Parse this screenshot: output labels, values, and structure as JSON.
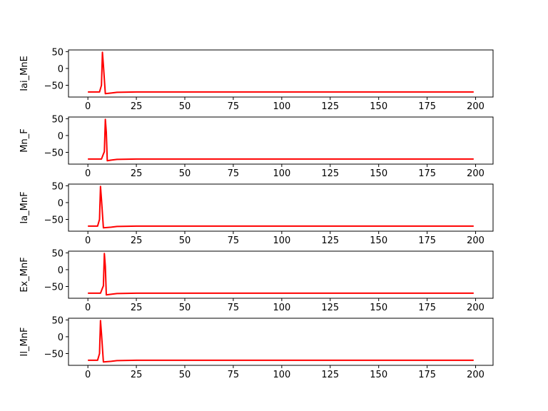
{
  "chart_data": [
    {
      "type": "line",
      "ylabel": "Iai_MnE",
      "xlim": [
        -10,
        209
      ],
      "ylim": [
        -85,
        55
      ],
      "xticks": [
        0,
        25,
        50,
        75,
        100,
        125,
        150,
        175,
        200
      ],
      "yticks": [
        50,
        0,
        -50
      ],
      "line_color": "#ff0000",
      "series": [
        {
          "x": [
            0,
            6,
            7,
            7.5,
            8,
            9,
            12,
            15,
            20,
            25,
            30,
            50,
            100,
            150,
            199
          ],
          "y": [
            -70,
            -70,
            -50,
            48,
            10,
            -75,
            -73,
            -71,
            -70.5,
            -70,
            -70,
            -70,
            -70,
            -70,
            -70
          ]
        }
      ]
    },
    {
      "type": "line",
      "ylabel": "Mn_F",
      "xlim": [
        -10,
        209
      ],
      "ylim": [
        -85,
        55
      ],
      "xticks": [
        0,
        25,
        50,
        75,
        100,
        125,
        150,
        175,
        200
      ],
      "yticks": [
        50,
        0,
        -50
      ],
      "line_color": "#ff0000",
      "series": [
        {
          "x": [
            0,
            7,
            8,
            8.5,
            9,
            9.5,
            10,
            12,
            15,
            20,
            25,
            50,
            100,
            150,
            199
          ],
          "y": [
            -70,
            -70,
            -55,
            -48,
            48,
            10,
            -75,
            -73,
            -71,
            -70.5,
            -70,
            -70,
            -70,
            -70,
            -70
          ]
        }
      ]
    },
    {
      "type": "line",
      "ylabel": "Ia_MnF",
      "xlim": [
        -10,
        209
      ],
      "ylim": [
        -85,
        55
      ],
      "xticks": [
        0,
        25,
        50,
        75,
        100,
        125,
        150,
        175,
        200
      ],
      "yticks": [
        50,
        0,
        -50
      ],
      "line_color": "#ff0000",
      "series": [
        {
          "x": [
            0,
            5,
            6,
            6.5,
            7,
            8,
            12,
            15,
            20,
            25,
            30,
            50,
            100,
            150,
            199
          ],
          "y": [
            -70,
            -70,
            -50,
            48,
            10,
            -75,
            -73,
            -71,
            -70.5,
            -70,
            -70,
            -70,
            -70,
            -70,
            -70
          ]
        }
      ]
    },
    {
      "type": "line",
      "ylabel": "Ex_MnF",
      "xlim": [
        -10,
        209
      ],
      "ylim": [
        -85,
        55
      ],
      "xticks": [
        0,
        25,
        50,
        75,
        100,
        125,
        150,
        175,
        200
      ],
      "yticks": [
        50,
        0,
        -50
      ],
      "line_color": "#ff0000",
      "series": [
        {
          "x": [
            0,
            6.5,
            7.5,
            8,
            8.5,
            9,
            9.5,
            12,
            15,
            20,
            25,
            50,
            100,
            150,
            199
          ],
          "y": [
            -70,
            -70,
            -55,
            -48,
            48,
            10,
            -75,
            -73,
            -71,
            -70.5,
            -70,
            -70,
            -70,
            -70,
            -70
          ]
        }
      ]
    },
    {
      "type": "line",
      "ylabel": "Il_MnF",
      "xlim": [
        -10,
        209
      ],
      "ylim": [
        -85,
        55
      ],
      "xticks": [
        0,
        25,
        50,
        75,
        100,
        125,
        150,
        175,
        200
      ],
      "yticks": [
        50,
        0,
        -50
      ],
      "line_color": "#ff0000",
      "series": [
        {
          "x": [
            0,
            5,
            6,
            6.5,
            7,
            8,
            12,
            15,
            20,
            25,
            30,
            50,
            100,
            150,
            199
          ],
          "y": [
            -70,
            -70,
            -50,
            48,
            10,
            -75,
            -73,
            -71,
            -70.5,
            -70,
            -70,
            -70,
            -70,
            -70,
            -70
          ]
        }
      ]
    }
  ]
}
